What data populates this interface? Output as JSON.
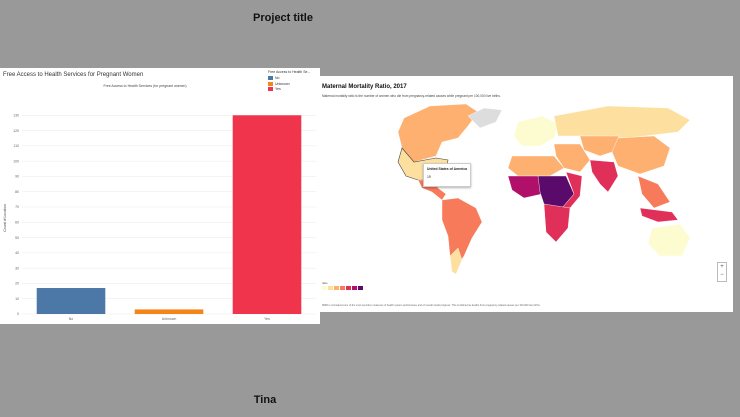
{
  "page": {
    "title_top": "Project title",
    "title_bottom": "Tina"
  },
  "left_panel": {
    "title": "Free Access to Health Services for Pregnant Women"
  },
  "chart_data": [
    {
      "type": "bar",
      "title": "Free Access to Health Services for Pregnant Women",
      "subtitle": "Free Access to Health Services (for pregnant women)",
      "ylabel": "Count of Location",
      "categories": [
        "No",
        "Unknown",
        "Yes"
      ],
      "values": [
        17,
        3,
        130
      ],
      "colors": [
        "#4c78a8",
        "#f58518",
        "#f0344c"
      ],
      "ylim": [
        0,
        140
      ],
      "yticks": [
        0,
        10,
        20,
        30,
        40,
        50,
        60,
        70,
        80,
        90,
        100,
        110,
        120,
        130
      ],
      "grid": true,
      "legend": {
        "title": "Free Access to Health Se...",
        "items": [
          {
            "label": "No",
            "color": "#4c78a8"
          },
          {
            "label": "Unknown",
            "color": "#f58518"
          },
          {
            "label": "Yes",
            "color": "#f0344c"
          }
        ],
        "position": "top-right"
      }
    },
    {
      "type": "map",
      "title": "Maternal Mortality Ratio, 2017",
      "subtitle": "Maternal mortality ratio is the number of women who die from pregnancy-related causes while pregnant per 100,000 live births.",
      "footnote": "MMR is considered one of the most sensitive measures of health system performance and of overall social progress. This is defined as deaths from pregnancy-related causes per 100,000 live births.",
      "tooltip": {
        "country": "United States of America",
        "value": "19"
      },
      "scale_colors": [
        "#fdfbd0",
        "#fde0a0",
        "#fdb070",
        "#f77a5a",
        "#e0305a",
        "#b0106a",
        "#5a0a6a"
      ],
      "legend_label": "ratio"
    }
  ]
}
